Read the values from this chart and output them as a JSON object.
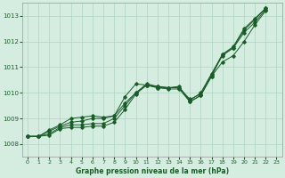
{
  "xlabel": "Graphe pression niveau de la mer (hPa)",
  "xlim": [
    -0.5,
    23.5
  ],
  "ylim": [
    1007.5,
    1013.5
  ],
  "yticks": [
    1008,
    1009,
    1010,
    1011,
    1012,
    1013
  ],
  "xticks": [
    0,
    1,
    2,
    3,
    4,
    5,
    6,
    7,
    8,
    9,
    10,
    11,
    12,
    13,
    14,
    15,
    16,
    17,
    18,
    19,
    20,
    21,
    22,
    23
  ],
  "background_color": "#d4ede0",
  "grid_color": "#b0d4c0",
  "line_color": "#1a5c28",
  "series": [
    [
      1008.3,
      1008.3,
      1008.35,
      1008.6,
      1008.65,
      1008.65,
      1008.7,
      1008.7,
      1008.85,
      1009.35,
      1009.95,
      1010.3,
      1010.25,
      1010.2,
      1010.2,
      1009.75,
      1009.95,
      1010.7,
      1011.45,
      1011.75,
      1012.35,
      1012.75,
      1013.25
    ],
    [
      1008.3,
      1008.3,
      1008.4,
      1008.65,
      1008.75,
      1008.75,
      1008.8,
      1008.8,
      1009.0,
      1009.5,
      1010.0,
      1010.35,
      1010.25,
      1010.2,
      1010.2,
      1009.7,
      1010.0,
      1010.75,
      1011.5,
      1011.8,
      1012.5,
      1012.9,
      1013.3
    ],
    [
      1008.3,
      1008.3,
      1008.5,
      1008.7,
      1008.85,
      1008.9,
      1009.0,
      1009.0,
      1009.1,
      1009.6,
      1010.0,
      1010.3,
      1010.2,
      1010.15,
      1010.15,
      1009.65,
      1009.9,
      1010.65,
      1011.2,
      1011.45,
      1012.0,
      1012.65,
      1013.2
    ],
    [
      1008.3,
      1008.3,
      1008.55,
      1008.75,
      1009.0,
      1009.05,
      1009.1,
      1009.05,
      1009.1,
      1009.85,
      1010.35,
      1010.3,
      1010.2,
      1010.2,
      1010.25,
      1009.65,
      1009.9,
      1010.65,
      1011.5,
      1011.75,
      1012.45,
      1012.85,
      1013.3
    ]
  ],
  "x_hours": [
    0,
    1,
    2,
    3,
    4,
    5,
    6,
    7,
    8,
    9,
    10,
    11,
    12,
    13,
    14,
    15,
    16,
    17,
    18,
    19,
    20,
    21,
    22
  ],
  "figsize": [
    3.2,
    2.0
  ],
  "dpi": 100
}
